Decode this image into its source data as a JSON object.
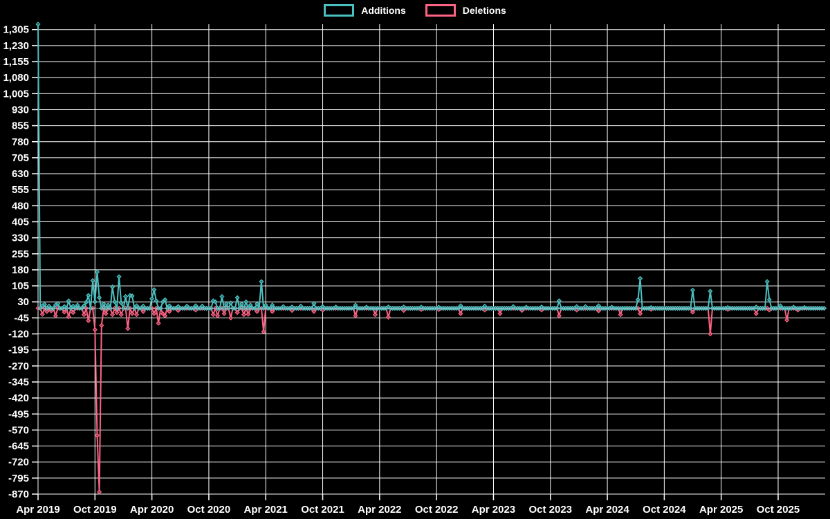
{
  "legend": [
    {
      "label": "Additions",
      "color": "#4bc0c0"
    },
    {
      "label": "Deletions",
      "color": "#ff6384"
    }
  ],
  "colors": {
    "background": "#000000",
    "grid": "#ffffff",
    "text": "#ffffff",
    "additions": "#4bc0c0",
    "deletions": "#ff6384",
    "baseline_blend": "#c9ced2"
  },
  "chart_data": {
    "type": "line",
    "title": "",
    "xlabel": "",
    "ylabel": "",
    "legend_position": "top",
    "grid": true,
    "point_style": "diamond",
    "x_unit": "weeks since first point (Apr 2019), one data point per week",
    "weeks_total": 360,
    "x_tick_weeks": [
      0,
      26,
      52,
      78,
      104,
      130,
      156,
      182,
      208,
      234,
      260,
      286,
      312,
      338
    ],
    "x_tick_labels": [
      "Apr 2019",
      "Oct 2019",
      "Apr 2020",
      "Oct 2020",
      "Apr 2021",
      "Oct 2021",
      "Apr 2022",
      "Oct 2022",
      "Apr 2023",
      "Oct 2023",
      "Apr 2024",
      "Oct 2024",
      "Apr 2025",
      "Oct 2025"
    ],
    "y_domain": [
      -870,
      1330
    ],
    "y_ticks": [
      1305,
      1230,
      1155,
      1080,
      1005,
      930,
      855,
      780,
      705,
      630,
      555,
      480,
      405,
      330,
      255,
      180,
      105,
      30,
      -45,
      -120,
      -195,
      -270,
      -345,
      -420,
      -495,
      -570,
      -645,
      -720,
      -795,
      -870
    ],
    "y_tick_labels": [
      "1,305",
      "1,230",
      "1,155",
      "1,080",
      "1,005",
      "930",
      "855",
      "780",
      "705",
      "630",
      "555",
      "480",
      "405",
      "330",
      "255",
      "180",
      "105",
      "30",
      "-45",
      "-120",
      "-195",
      "-270",
      "-345",
      "-420",
      "-495",
      "-570",
      "-645",
      "-720",
      "-795",
      "-870"
    ],
    "series": [
      {
        "name": "Additions",
        "color": "#4bc0c0",
        "default_value": 0,
        "points": [
          [
            0,
            1330
          ],
          [
            2,
            12
          ],
          [
            3,
            18
          ],
          [
            5,
            10
          ],
          [
            8,
            15
          ],
          [
            9,
            22
          ],
          [
            12,
            8
          ],
          [
            14,
            35
          ],
          [
            16,
            10
          ],
          [
            18,
            15
          ],
          [
            21,
            12
          ],
          [
            22,
            28
          ],
          [
            23,
            60
          ],
          [
            25,
            130
          ],
          [
            26,
            30
          ],
          [
            27,
            170
          ],
          [
            28,
            50
          ],
          [
            30,
            20
          ],
          [
            32,
            15
          ],
          [
            34,
            100
          ],
          [
            35,
            30
          ],
          [
            37,
            148
          ],
          [
            38,
            25
          ],
          [
            40,
            55
          ],
          [
            42,
            60
          ],
          [
            43,
            58
          ],
          [
            45,
            12
          ],
          [
            48,
            10
          ],
          [
            52,
            45
          ],
          [
            53,
            87
          ],
          [
            54,
            35
          ],
          [
            57,
            30
          ],
          [
            58,
            40
          ],
          [
            60,
            12
          ],
          [
            64,
            8
          ],
          [
            68,
            10
          ],
          [
            72,
            12
          ],
          [
            75,
            10
          ],
          [
            80,
            35
          ],
          [
            81,
            30
          ],
          [
            84,
            55
          ],
          [
            86,
            20
          ],
          [
            88,
            25
          ],
          [
            91,
            50
          ],
          [
            93,
            20
          ],
          [
            95,
            30
          ],
          [
            97,
            15
          ],
          [
            100,
            20
          ],
          [
            102,
            125
          ],
          [
            104,
            15
          ],
          [
            107,
            15
          ],
          [
            112,
            8
          ],
          [
            116,
            6
          ],
          [
            120,
            10
          ],
          [
            126,
            22
          ],
          [
            130,
            8
          ],
          [
            136,
            6
          ],
          [
            145,
            15
          ],
          [
            150,
            5
          ],
          [
            160,
            6
          ],
          [
            167,
            6
          ],
          [
            175,
            5
          ],
          [
            183,
            5
          ],
          [
            193,
            12
          ],
          [
            204,
            10
          ],
          [
            217,
            8
          ],
          [
            223,
            5
          ],
          [
            230,
            6
          ],
          [
            238,
            35
          ],
          [
            246,
            8
          ],
          [
            250,
            8
          ],
          [
            256,
            12
          ],
          [
            262,
            5
          ],
          [
            274,
            40
          ],
          [
            275,
            140
          ],
          [
            280,
            4
          ],
          [
            299,
            85
          ],
          [
            307,
            80
          ],
          [
            315,
            4
          ],
          [
            328,
            6
          ],
          [
            333,
            125
          ],
          [
            334,
            40
          ],
          [
            339,
            12
          ],
          [
            345,
            5
          ],
          [
            350,
            4
          ]
        ]
      },
      {
        "name": "Deletions",
        "color": "#ff6384",
        "default_value": 0,
        "points": [
          [
            2,
            -28
          ],
          [
            4,
            -15
          ],
          [
            6,
            -12
          ],
          [
            8,
            -35
          ],
          [
            12,
            -18
          ],
          [
            14,
            -40
          ],
          [
            16,
            -20
          ],
          [
            21,
            -30
          ],
          [
            23,
            -58
          ],
          [
            26,
            -100
          ],
          [
            27,
            -595
          ],
          [
            28,
            -860
          ],
          [
            29,
            -80
          ],
          [
            31,
            -25
          ],
          [
            34,
            -30
          ],
          [
            36,
            -20
          ],
          [
            38,
            -30
          ],
          [
            41,
            -95
          ],
          [
            43,
            -25
          ],
          [
            45,
            -30
          ],
          [
            48,
            -15
          ],
          [
            53,
            -25
          ],
          [
            55,
            -70
          ],
          [
            57,
            -25
          ],
          [
            58,
            -35
          ],
          [
            60,
            -15
          ],
          [
            64,
            -10
          ],
          [
            72,
            -8
          ],
          [
            80,
            -30
          ],
          [
            82,
            -35
          ],
          [
            85,
            -25
          ],
          [
            88,
            -45
          ],
          [
            91,
            -20
          ],
          [
            94,
            -30
          ],
          [
            96,
            -28
          ],
          [
            100,
            -15
          ],
          [
            103,
            -110
          ],
          [
            107,
            -15
          ],
          [
            116,
            -10
          ],
          [
            126,
            -15
          ],
          [
            130,
            -8
          ],
          [
            145,
            -35
          ],
          [
            154,
            -30
          ],
          [
            160,
            -42
          ],
          [
            167,
            -10
          ],
          [
            175,
            -6
          ],
          [
            183,
            -6
          ],
          [
            193,
            -25
          ],
          [
            204,
            -8
          ],
          [
            211,
            -25
          ],
          [
            221,
            -10
          ],
          [
            230,
            -8
          ],
          [
            238,
            -35
          ],
          [
            246,
            -8
          ],
          [
            256,
            -12
          ],
          [
            266,
            -30
          ],
          [
            275,
            -25
          ],
          [
            280,
            -5
          ],
          [
            299,
            -18
          ],
          [
            307,
            -120
          ],
          [
            315,
            -5
          ],
          [
            328,
            -25
          ],
          [
            334,
            -8
          ],
          [
            342,
            -55
          ],
          [
            347,
            -8
          ]
        ]
      }
    ]
  }
}
